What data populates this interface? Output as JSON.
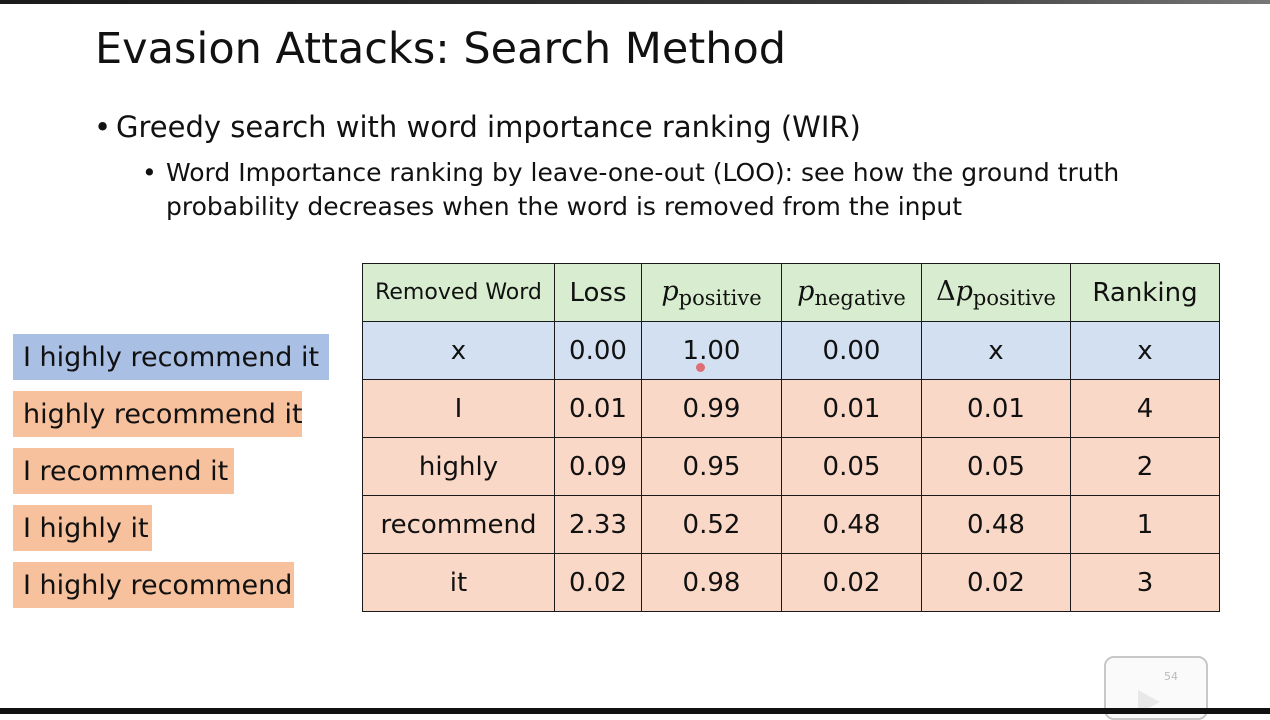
{
  "slide": {
    "title": "Evasion Attacks: Search Method",
    "bullet1": "Greedy search with word importance ranking (WIR)",
    "bullet2": "Word Importance ranking by leave-one-out (LOO): see how the ground truth probability decreases when the word is removed from the input",
    "bullet_glyph": "•",
    "page_number": "54"
  },
  "sentences": [
    "I highly recommend it",
    "highly recommend it",
    "I recommend it",
    "I highly it",
    "I highly recommend"
  ],
  "table": {
    "headers": {
      "removed_word": "Removed Word",
      "loss": "Loss",
      "p_symbol": "p",
      "delta_symbol": "Δ",
      "sub_positive": "positive",
      "sub_negative": "negative",
      "ranking": "Ranking"
    },
    "rows": [
      {
        "word": "x",
        "loss": "0.00",
        "p_pos": "1.00",
        "p_neg": "0.00",
        "delta": "x",
        "rank": "x"
      },
      {
        "word": "I",
        "loss": "0.01",
        "p_pos": "0.99",
        "p_neg": "0.01",
        "delta": "0.01",
        "rank": "4"
      },
      {
        "word": "highly",
        "loss": "0.09",
        "p_pos": "0.95",
        "p_neg": "0.05",
        "delta": "0.05",
        "rank": "2"
      },
      {
        "word": "recommend",
        "loss": "2.33",
        "p_pos": "0.52",
        "p_neg": "0.48",
        "delta": "0.48",
        "rank": "1"
      },
      {
        "word": "it",
        "loss": "0.02",
        "p_pos": "0.98",
        "p_neg": "0.02",
        "delta": "0.02",
        "rank": "3"
      }
    ]
  },
  "colors": {
    "base_sentence": "#a9bfe3",
    "removed_sentence": "#f7c19e",
    "header_row": "#d8edcf",
    "base_row": "#d3e0f1",
    "removed_row": "#fad8c7"
  }
}
